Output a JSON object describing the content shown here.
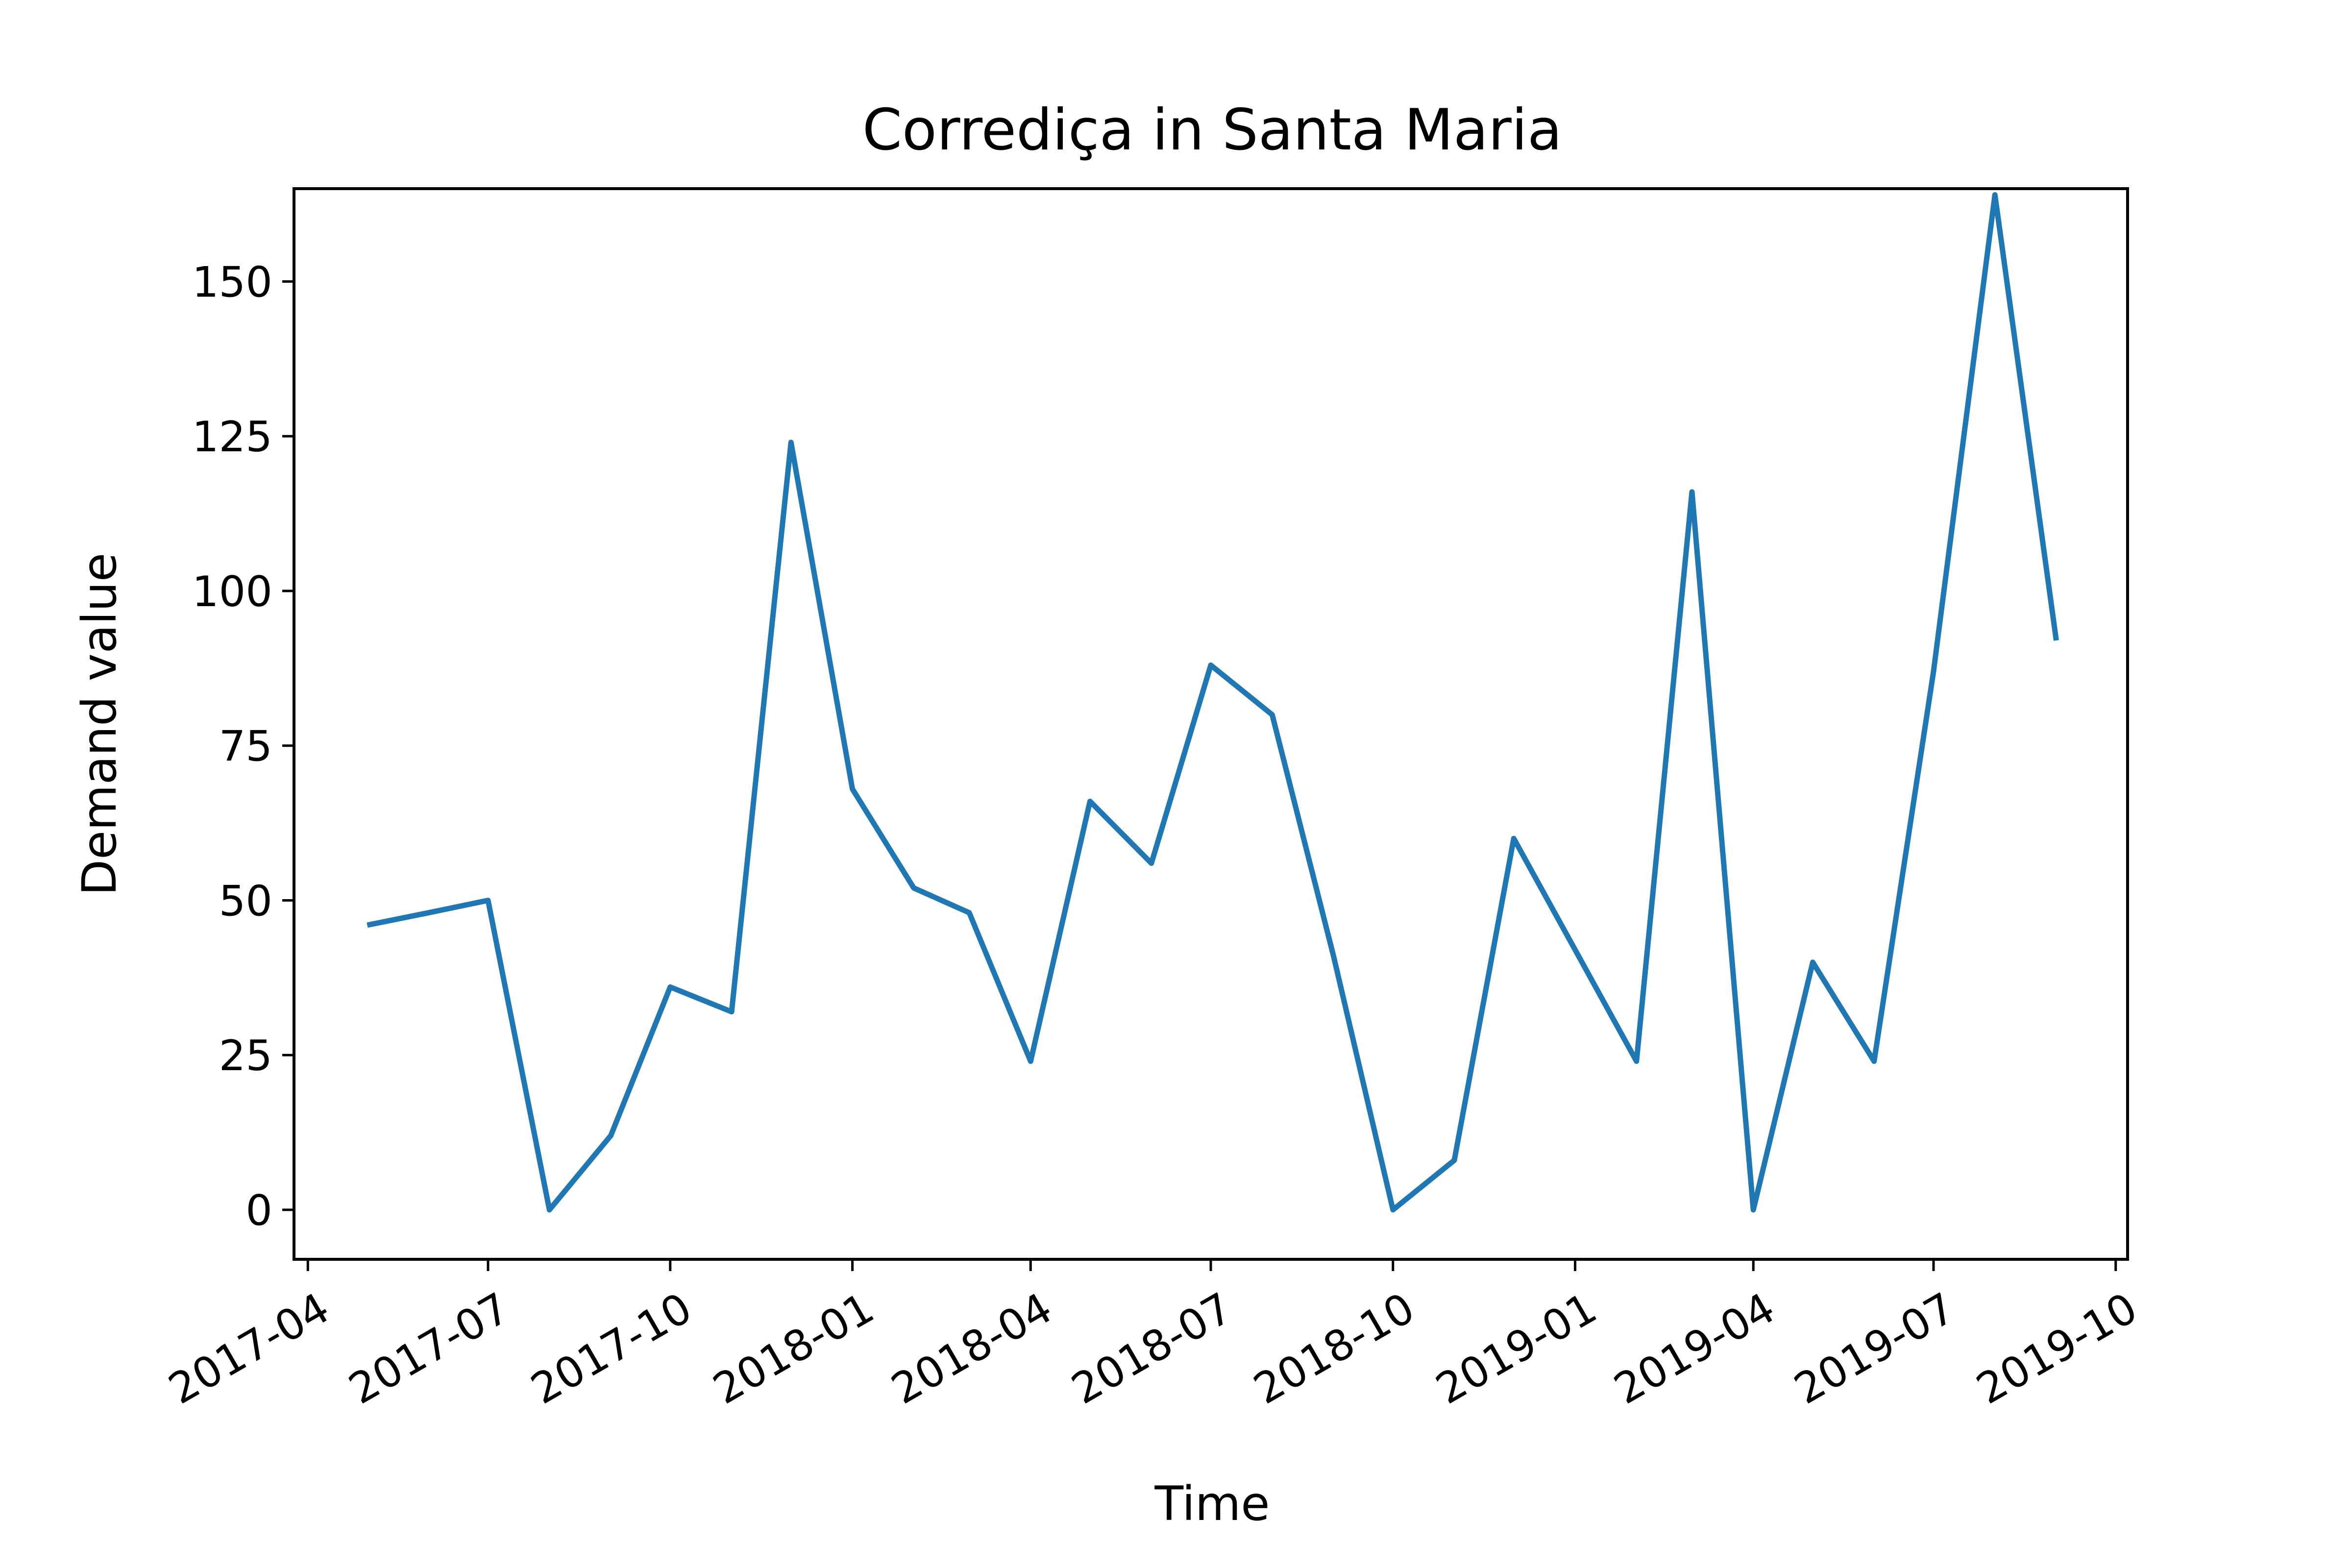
{
  "chart_data": {
    "type": "line",
    "title": "Corrediça in Santa Maria",
    "xlabel": "Time",
    "ylabel": "Demand value",
    "x_ticks": [
      "2017-04",
      "2017-07",
      "2017-10",
      "2018-01",
      "2018-04",
      "2018-07",
      "2018-10",
      "2019-01",
      "2019-04",
      "2019-07",
      "2019-10"
    ],
    "y_ticks": [
      0,
      25,
      50,
      75,
      100,
      125,
      150
    ],
    "xlim": [
      "2017-03-25",
      "2019-10-07"
    ],
    "ylim": [
      -8,
      165
    ],
    "grid": false,
    "series": [
      {
        "color": "#1f77b4",
        "x": [
          "2017-05-01",
          "2017-06-01",
          "2017-07-01",
          "2017-08-01",
          "2017-09-01",
          "2017-10-01",
          "2017-11-01",
          "2017-12-01",
          "2018-01-01",
          "2018-02-01",
          "2018-03-01",
          "2018-04-01",
          "2018-05-01",
          "2018-06-01",
          "2018-07-01",
          "2018-08-01",
          "2018-09-01",
          "2018-10-01",
          "2018-11-01",
          "2018-12-01",
          "2019-01-01",
          "2019-02-01",
          "2019-03-01",
          "2019-04-01",
          "2019-05-01",
          "2019-06-01",
          "2019-07-01",
          "2019-08-01",
          "2019-09-01"
        ],
        "values": [
          46,
          48,
          50,
          0,
          12,
          36,
          32,
          124,
          68,
          52,
          48,
          24,
          66,
          56,
          88,
          80,
          41,
          0,
          8,
          60,
          42,
          24,
          116,
          0,
          40,
          24,
          87,
          164,
          92
        ]
      }
    ]
  }
}
